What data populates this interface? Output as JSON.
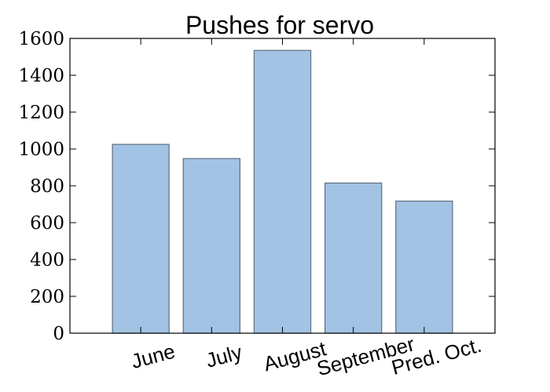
{
  "chart_data": {
    "type": "bar",
    "title": "Pushes for servo",
    "categories": [
      "June",
      "July",
      "August",
      "September",
      "Pred. Oct."
    ],
    "values": [
      1025,
      948,
      1535,
      815,
      717
    ],
    "ylim": [
      0,
      1600
    ],
    "yticks": [
      0,
      200,
      400,
      600,
      800,
      1000,
      1200,
      1400,
      1600
    ],
    "xlabel": "",
    "ylabel": "",
    "grid": false,
    "bar_color": "#a2c3e3",
    "bar_edge_color": "#5f6f80"
  }
}
